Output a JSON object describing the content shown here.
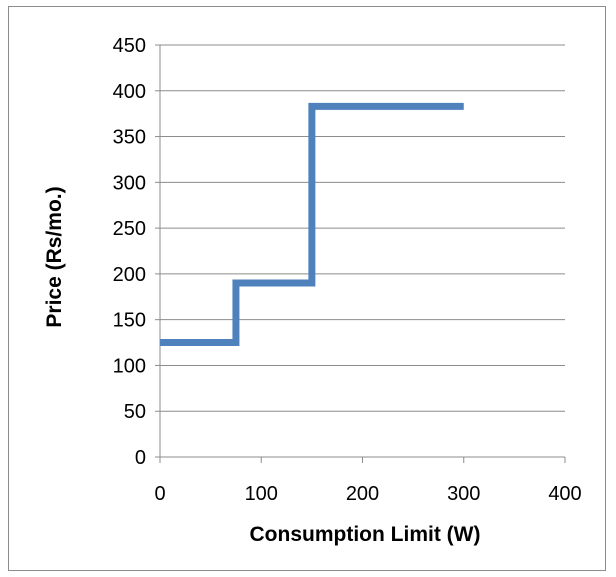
{
  "chart_data": {
    "type": "line",
    "xlabel": "Consumption Limit (W)",
    "ylabel": "Price (Rs/mo.)",
    "xlim": [
      0,
      400
    ],
    "ylim": [
      0,
      450
    ],
    "x_ticks": [
      "0",
      "100",
      "200",
      "300",
      "400"
    ],
    "y_ticks": [
      "0",
      "50",
      "100",
      "150",
      "200",
      "250",
      "300",
      "350",
      "400",
      "450"
    ],
    "grid": "horizontal",
    "legend": "none",
    "series": [
      {
        "color": "#4f81bd",
        "points": [
          {
            "x": 0,
            "y": 125
          },
          {
            "x": 75,
            "y": 125
          },
          {
            "x": 75,
            "y": 190
          },
          {
            "x": 150,
            "y": 190
          },
          {
            "x": 150,
            "y": 383
          },
          {
            "x": 300,
            "y": 383
          }
        ]
      }
    ]
  }
}
